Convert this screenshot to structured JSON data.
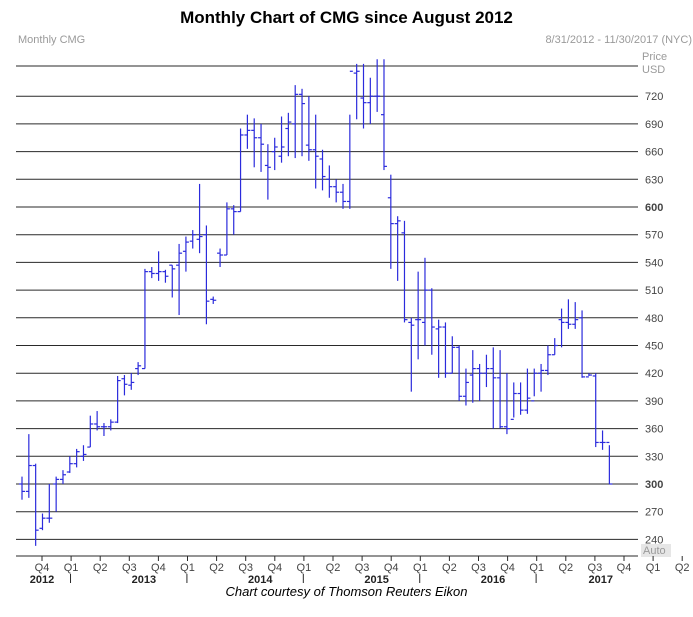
{
  "title": "Monthly Chart of CMG since August 2012",
  "caption": "Chart courtesy of Thomson Reuters Eikon",
  "colors": {
    "bar": "#2b2bdc",
    "grid": "#2a2a2a",
    "axis_text": "#444444",
    "header_text": "#9a9a9a",
    "auto_bg": "#e6e6e6"
  },
  "chart_data": {
    "type": "ohlc",
    "instrument": "Monthly CMG",
    "date_range": "8/31/2012 - 11/30/2017 (NYC)",
    "price_label": "Price",
    "currency_label": "USD",
    "auto_label": "Auto",
    "y_ticks": [
      240,
      270,
      300,
      330,
      360,
      390,
      420,
      450,
      480,
      510,
      540,
      570,
      600,
      630,
      660,
      690,
      720
    ],
    "y_bold_ticks": [
      300,
      600
    ],
    "quarter_labels": [
      "Q4",
      "Q1",
      "Q2",
      "Q3",
      "Q4",
      "Q1",
      "Q2",
      "Q3",
      "Q4",
      "Q1",
      "Q2",
      "Q3",
      "Q4",
      "Q1",
      "Q2",
      "Q3",
      "Q4",
      "Q1",
      "Q2",
      "Q3",
      "Q4",
      "Q1",
      "Q2",
      "Q3",
      "Q4"
    ],
    "year_labels": [
      {
        "label": "2012",
        "quarter_index": 0
      },
      {
        "label": "2013",
        "quarter_index": 3.5
      },
      {
        "label": "2014",
        "quarter_index": 7.5
      },
      {
        "label": "2015",
        "quarter_index": 11.5
      },
      {
        "label": "2016",
        "quarter_index": 15.5
      },
      {
        "label": "2017",
        "quarter_index": 19.2
      }
    ],
    "year_separators_after_quarter": [
      0,
      4,
      8,
      12,
      16
    ],
    "bars": [
      {
        "o": 300,
        "h": 308,
        "l": 283,
        "c": 292
      },
      {
        "o": 292,
        "h": 354,
        "l": 285,
        "c": 320
      },
      {
        "o": 320,
        "h": 322,
        "l": 233,
        "c": 250
      },
      {
        "o": 252,
        "h": 268,
        "l": 250,
        "c": 263
      },
      {
        "o": 263,
        "h": 300,
        "l": 258,
        "c": 263
      },
      {
        "o": 300,
        "h": 308,
        "l": 270,
        "c": 305
      },
      {
        "o": 305,
        "h": 315,
        "l": 300,
        "c": 310
      },
      {
        "o": 313,
        "h": 330,
        "l": 312,
        "c": 322
      },
      {
        "o": 322,
        "h": 338,
        "l": 318,
        "c": 335
      },
      {
        "o": 330,
        "h": 342,
        "l": 325,
        "c": 332
      },
      {
        "o": 340,
        "h": 374,
        "l": 340,
        "c": 365
      },
      {
        "o": 365,
        "h": 379,
        "l": 358,
        "c": 362
      },
      {
        "o": 362,
        "h": 366,
        "l": 352,
        "c": 362
      },
      {
        "o": 362,
        "h": 370,
        "l": 358,
        "c": 367
      },
      {
        "o": 367,
        "h": 417,
        "l": 366,
        "c": 412
      },
      {
        "o": 414,
        "h": 418,
        "l": 396,
        "c": 408
      },
      {
        "o": 407,
        "h": 420,
        "l": 402,
        "c": 410
      },
      {
        "o": 425,
        "h": 432,
        "l": 418,
        "c": 428
      },
      {
        "o": 425,
        "h": 533,
        "l": 425,
        "c": 530
      },
      {
        "o": 530,
        "h": 535,
        "l": 523,
        "c": 528
      },
      {
        "o": 528,
        "h": 552,
        "l": 520,
        "c": 530
      },
      {
        "o": 530,
        "h": 532,
        "l": 518,
        "c": 525
      },
      {
        "o": 537,
        "h": 537,
        "l": 502,
        "c": 533
      },
      {
        "o": 537,
        "h": 560,
        "l": 483,
        "c": 550
      },
      {
        "o": 552,
        "h": 568,
        "l": 530,
        "c": 562
      },
      {
        "o": 563,
        "h": 575,
        "l": 555,
        "c": 570
      },
      {
        "o": 565,
        "h": 625,
        "l": 550,
        "c": 568
      },
      {
        "o": 570,
        "h": 580,
        "l": 473,
        "c": 498
      },
      {
        "o": 500,
        "h": 503,
        "l": 495,
        "c": 499
      },
      {
        "o": 550,
        "h": 555,
        "l": 535,
        "c": 548
      },
      {
        "o": 548,
        "h": 605,
        "l": 548,
        "c": 598
      },
      {
        "o": 598,
        "h": 602,
        "l": 570,
        "c": 595
      },
      {
        "o": 595,
        "h": 685,
        "l": 595,
        "c": 678
      },
      {
        "o": 678,
        "h": 700,
        "l": 663,
        "c": 683
      },
      {
        "o": 683,
        "h": 696,
        "l": 643,
        "c": 675
      },
      {
        "o": 675,
        "h": 690,
        "l": 638,
        "c": 668
      },
      {
        "o": 645,
        "h": 668,
        "l": 608,
        "c": 643
      },
      {
        "o": 660,
        "h": 675,
        "l": 640,
        "c": 665
      },
      {
        "o": 655,
        "h": 698,
        "l": 648,
        "c": 665
      },
      {
        "o": 685,
        "h": 702,
        "l": 655,
        "c": 692
      },
      {
        "o": 690,
        "h": 732,
        "l": 653,
        "c": 722
      },
      {
        "o": 722,
        "h": 728,
        "l": 655,
        "c": 712
      },
      {
        "o": 667,
        "h": 720,
        "l": 650,
        "c": 662
      },
      {
        "o": 662,
        "h": 700,
        "l": 620,
        "c": 655
      },
      {
        "o": 652,
        "h": 662,
        "l": 618,
        "c": 633
      },
      {
        "o": 630,
        "h": 645,
        "l": 610,
        "c": 622
      },
      {
        "o": 622,
        "h": 630,
        "l": 605,
        "c": 616
      },
      {
        "o": 616,
        "h": 625,
        "l": 598,
        "c": 606
      },
      {
        "o": 606,
        "h": 700,
        "l": 598,
        "c": 747
      },
      {
        "o": 745,
        "h": 755,
        "l": 695,
        "c": 747
      },
      {
        "o": 718,
        "h": 755,
        "l": 685,
        "c": 713
      },
      {
        "o": 713,
        "h": 740,
        "l": 690,
        "c": 720
      },
      {
        "o": 720,
        "h": 760,
        "l": 703,
        "c": 720
      },
      {
        "o": 700,
        "h": 760,
        "l": 640,
        "c": 644
      },
      {
        "o": 610,
        "h": 635,
        "l": 533,
        "c": 582
      },
      {
        "o": 582,
        "h": 590,
        "l": 520,
        "c": 585
      },
      {
        "o": 572,
        "h": 585,
        "l": 475,
        "c": 478
      },
      {
        "o": 475,
        "h": 480,
        "l": 400,
        "c": 472
      },
      {
        "o": 478,
        "h": 530,
        "l": 435,
        "c": 478
      },
      {
        "o": 475,
        "h": 545,
        "l": 450,
        "c": 510
      },
      {
        "o": 510,
        "h": 512,
        "l": 440,
        "c": 470
      },
      {
        "o": 468,
        "h": 478,
        "l": 415,
        "c": 470
      },
      {
        "o": 470,
        "h": 475,
        "l": 415,
        "c": 420
      },
      {
        "o": 420,
        "h": 460,
        "l": 420,
        "c": 448
      },
      {
        "o": 448,
        "h": 450,
        "l": 390,
        "c": 395
      },
      {
        "o": 395,
        "h": 425,
        "l": 385,
        "c": 410
      },
      {
        "o": 418,
        "h": 445,
        "l": 388,
        "c": 425
      },
      {
        "o": 425,
        "h": 430,
        "l": 390,
        "c": 420
      },
      {
        "o": 420,
        "h": 440,
        "l": 405,
        "c": 425
      },
      {
        "o": 425,
        "h": 448,
        "l": 360,
        "c": 415
      },
      {
        "o": 415,
        "h": 445,
        "l": 360,
        "c": 362
      },
      {
        "o": 362,
        "h": 420,
        "l": 354,
        "c": 360
      },
      {
        "o": 370,
        "h": 410,
        "l": 372,
        "c": 398
      },
      {
        "o": 398,
        "h": 410,
        "l": 375,
        "c": 380
      },
      {
        "o": 380,
        "h": 425,
        "l": 376,
        "c": 393
      },
      {
        "o": 390,
        "h": 425,
        "l": 395,
        "c": 420
      },
      {
        "o": 420,
        "h": 430,
        "l": 400,
        "c": 423
      },
      {
        "o": 423,
        "h": 450,
        "l": 418,
        "c": 440
      },
      {
        "o": 440,
        "h": 458,
        "l": 440,
        "c": 450
      },
      {
        "o": 478,
        "h": 490,
        "l": 448,
        "c": 475
      },
      {
        "o": 475,
        "h": 500,
        "l": 468,
        "c": 473
      },
      {
        "o": 473,
        "h": 497,
        "l": 468,
        "c": 478
      },
      {
        "o": 480,
        "h": 488,
        "l": 415,
        "c": 416
      },
      {
        "o": 416,
        "h": 420,
        "l": 417,
        "c": 418
      },
      {
        "o": 417,
        "h": 420,
        "l": 340,
        "c": 345
      },
      {
        "o": 345,
        "h": 358,
        "l": 337,
        "c": 345
      },
      {
        "o": 345,
        "h": 342,
        "l": 300,
        "c": 300
      }
    ]
  }
}
